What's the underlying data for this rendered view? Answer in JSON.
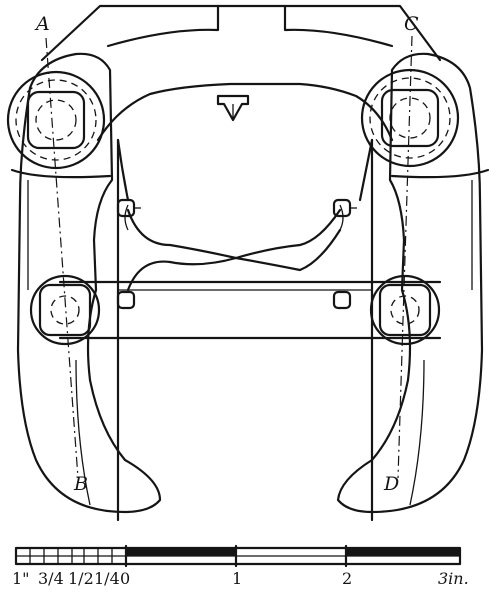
{
  "labels": {
    "a": "A",
    "b": "B",
    "c": "C",
    "d": "D"
  },
  "scale": {
    "ticks": [
      "1\"",
      "3/4",
      "1/2",
      "1/4",
      "0",
      "1",
      "2",
      "3in."
    ]
  },
  "colors": {
    "ink": "#151515",
    "paper": "#ffffff"
  }
}
